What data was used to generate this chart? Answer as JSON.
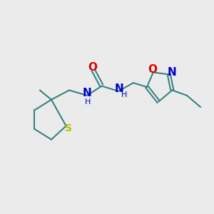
{
  "background_color": "#ebebeb",
  "bond_color": "#2d7d7d",
  "bond_lw": 1.4,
  "fig_width": 3.0,
  "fig_height": 3.0,
  "dpi": 100,
  "xlim": [
    0,
    10
  ],
  "ylim": [
    0,
    10
  ],
  "atoms": {
    "O_carbonyl": {
      "label": "O",
      "color": "#dd0000"
    },
    "N_left": {
      "label": "N",
      "color": "#0000cc"
    },
    "N_right": {
      "label": "N",
      "color": "#0000cc"
    },
    "O_iso": {
      "label": "O",
      "color": "#dd0000"
    },
    "N_iso": {
      "label": "N",
      "color": "#0000cc"
    },
    "S": {
      "label": "S",
      "color": "#bbbb00"
    }
  }
}
